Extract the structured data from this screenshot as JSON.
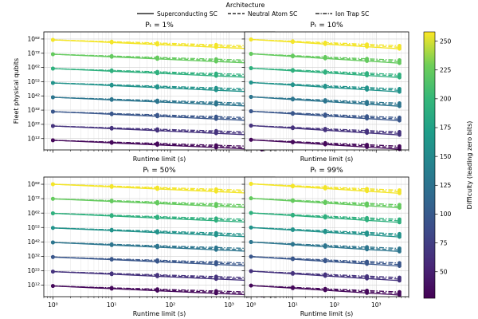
{
  "chart_data": {
    "type": "line",
    "legend": {
      "title": "Architecture",
      "entries": [
        {
          "name": "Superconducting SC",
          "dash": "solid"
        },
        {
          "name": "Neutral Atom SC",
          "dash": "dashed"
        },
        {
          "name": "Ion Trap SC",
          "dash": "dashdot"
        }
      ],
      "placement": "top-center"
    },
    "xlabel": "Runtime limit (s)",
    "ylabel": "Fleet physical qubits",
    "xscale": "log",
    "yscale": "log",
    "xlim": [
      0.7,
      6000
    ],
    "ylim_log10": [
      4,
      87
    ],
    "xticks": [
      {
        "value": 1,
        "label": "10⁰"
      },
      {
        "value": 10,
        "label": "10¹"
      },
      {
        "value": 100,
        "label": "10²"
      },
      {
        "value": 1000,
        "label": "10³"
      }
    ],
    "yticks": [
      {
        "exp": 12,
        "label": "10¹²"
      },
      {
        "exp": 22,
        "label": "10²²"
      },
      {
        "exp": 32,
        "label": "10³²"
      },
      {
        "exp": 42,
        "label": "10⁴²"
      },
      {
        "exp": 52,
        "label": "10⁵²"
      },
      {
        "exp": 62,
        "label": "10⁶²"
      },
      {
        "exp": 72,
        "label": "10⁷²"
      },
      {
        "exp": 82,
        "label": "10⁸²"
      }
    ],
    "x": [
      1,
      10,
      60,
      600,
      3600
    ],
    "difficulties": [
      32,
      64,
      96,
      128,
      160,
      192,
      224,
      256
    ],
    "start_log10": [
      10.8,
      20.8,
      30.9,
      41.0,
      51.1,
      61.2,
      71.3,
      81.4
    ],
    "slope_per_decade": [
      {
        "arch": "Superconducting SC",
        "slope": -1.85
      },
      {
        "arch": "Neutral Atom SC",
        "slope": -1.55
      },
      {
        "arch": "Ion Trap SC",
        "slope": -1.25
      }
    ],
    "panels": [
      {
        "title": "Pₜ = 1%",
        "offset_log10": 0.0
      },
      {
        "title": "Pₜ = 10%",
        "offset_log10": 0.3
      },
      {
        "title": "Pₜ = 50%",
        "offset_log10": 0.6
      },
      {
        "title": "Pₜ = 99%",
        "offset_log10": 0.9
      }
    ],
    "colorbar": {
      "label": "Difficulty (leading zero bits)",
      "colormap": "viridis",
      "range": [
        27,
        258
      ],
      "ticks": [
        50,
        75,
        100,
        125,
        150,
        175,
        200,
        225,
        250
      ]
    }
  }
}
